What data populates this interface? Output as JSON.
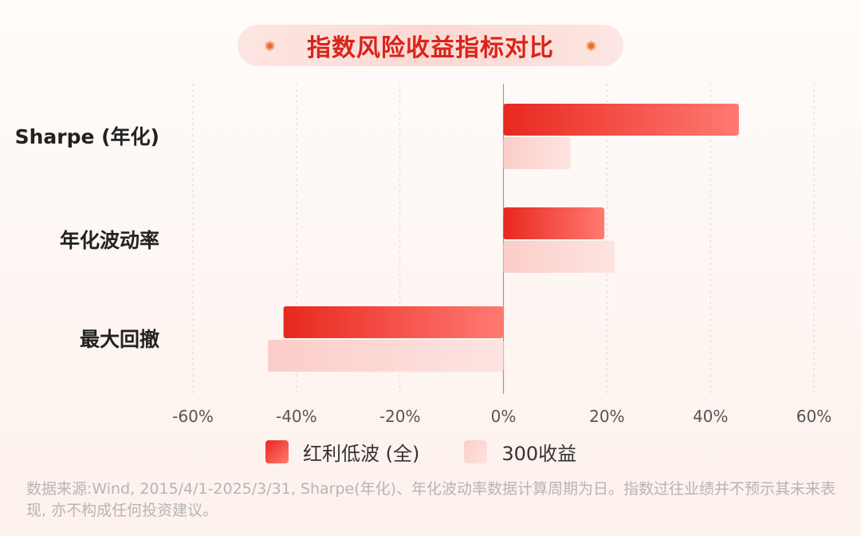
{
  "title": "指数风险收益指标对比",
  "colors": {
    "primary": "#e8281f",
    "primary_light": "#ff7a72",
    "secondary": "#fbcdc8",
    "secondary_light": "#fde4e1",
    "title_text": "#d9241b",
    "accent_icon": "#ef6a2c"
  },
  "icons": {
    "title_decoration": "hexagon-dot-icon"
  },
  "chart_data": {
    "type": "bar",
    "orientation": "horizontal",
    "categories": [
      "Sharpe (年化)",
      "年化波动率",
      "最大回撤"
    ],
    "series": [
      {
        "name": "红利低波 (全)",
        "values": [
          45.5,
          19.5,
          -42.5
        ]
      },
      {
        "name": "300收益",
        "values": [
          13,
          21.5,
          -45.5
        ]
      }
    ],
    "xlim": [
      -60,
      60
    ],
    "xticks": [
      "-60%",
      "-40%",
      "-20%",
      "0%",
      "20%",
      "40%",
      "60%"
    ],
    "grid": "vertical-dashed",
    "legend_position": "bottom"
  },
  "note": "数据来源:Wind, 2015/4/1-2025/3/31, Sharpe(年化)、年化波动率数据计算周期为日。指数过往业绩并不预示其未来表现, 亦不构成任何投资建议。"
}
